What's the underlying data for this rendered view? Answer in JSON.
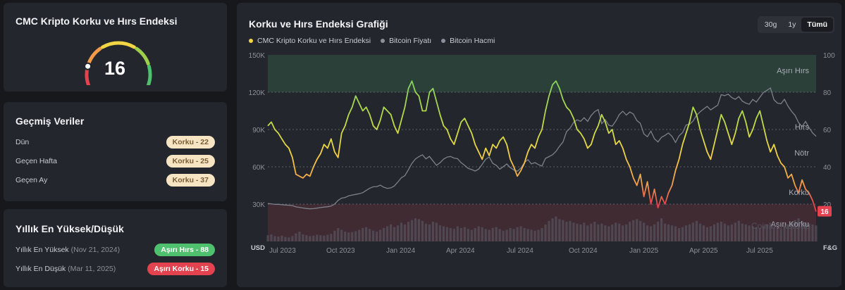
{
  "gauge": {
    "title": "CMC Kripto Korku ve Hırs Endeksi",
    "value": "16",
    "level": 16,
    "colors": [
      "#e2434e",
      "#f2994a",
      "#f2d544",
      "#9ccf4b",
      "#4fc16e"
    ]
  },
  "history": {
    "title": "Geçmiş Veriler",
    "rows": [
      {
        "label": "Dün",
        "badge": "Korku - 22"
      },
      {
        "label": "Geçen Hafta",
        "badge": "Korku - 25"
      },
      {
        "label": "Geçen Ay",
        "badge": "Korku - 37"
      }
    ]
  },
  "yearly": {
    "title": "Yıllık En Yüksek/Düşük",
    "high": {
      "label": "Yıllık En Yüksek",
      "date": "(Nov 21, 2024)",
      "badge": "Aşırı Hırs - 88"
    },
    "low": {
      "label": "Yıllık En Düşük",
      "date": "(Mar 11, 2025)",
      "badge": "Aşırı Korku - 15"
    }
  },
  "chart_card": {
    "title": "Korku ve Hırs Endeksi Grafiği",
    "ranges": [
      "30g",
      "1y",
      "Tümü"
    ],
    "active_range": "Tümü",
    "legend": [
      {
        "name": "CMC Kripto Korku ve Hırs Endeksi",
        "color": "#f2d544"
      },
      {
        "name": "Bitcoin Fiyatı",
        "color": "#8c909a"
      },
      {
        "name": "Bitcoin Hacmi",
        "color": "#8c909a"
      }
    ],
    "watermark": "CoinMarketCap"
  },
  "chart_data": {
    "type": "line",
    "x_ticks": [
      "Jul 2023",
      "Oct 2023",
      "Jan 2024",
      "Apr 2024",
      "Jul 2024",
      "Oct 2024",
      "Jan 2025",
      "Apr 2025",
      "Jul 2025"
    ],
    "left_axis": {
      "unit": "USD",
      "ticks": [
        "150K",
        "120K",
        "90K",
        "60K",
        "30K"
      ],
      "range": [
        0,
        150000
      ]
    },
    "right_axis": {
      "unit": "F&G",
      "ticks": [
        "100",
        "80",
        "60",
        "40",
        "20"
      ],
      "range": [
        0,
        100
      ]
    },
    "zones": [
      {
        "label": "Aşırı Hırs",
        "from": 80,
        "to": 100
      },
      {
        "label": "Hırs",
        "value": 60
      },
      {
        "label": "Nötr",
        "value": 46
      },
      {
        "label": "Korku",
        "value": 25
      },
      {
        "label": "Aşırı Korku",
        "from": 0,
        "to": 20
      }
    ],
    "current_label": "16",
    "current_value": 16,
    "series": [
      {
        "name": "CMC Kripto Korku ve Hırs Endeksi",
        "axis": "right",
        "values": [
          62,
          64,
          60,
          58,
          55,
          52,
          50,
          45,
          36,
          35,
          34,
          36,
          35,
          40,
          44,
          47,
          52,
          50,
          55,
          48,
          45,
          58,
          62,
          68,
          72,
          78,
          74,
          70,
          72,
          68,
          62,
          60,
          65,
          72,
          70,
          68,
          62,
          58,
          65,
          72,
          82,
          86,
          80,
          78,
          70,
          70,
          80,
          82,
          75,
          68,
          62,
          60,
          55,
          52,
          58,
          64,
          66,
          62,
          58,
          52,
          48,
          44,
          50,
          46,
          52,
          50,
          54,
          56,
          52,
          44,
          40,
          35,
          38,
          42,
          48,
          52,
          50,
          56,
          60,
          70,
          78,
          84,
          86,
          82,
          76,
          72,
          70,
          66,
          60,
          58,
          55,
          50,
          52,
          58,
          62,
          68,
          64,
          58,
          60,
          52,
          54,
          50,
          44,
          40,
          34,
          30,
          36,
          24,
          32,
          20,
          28,
          18,
          24,
          20,
          26,
          30,
          38,
          44,
          52,
          58,
          64,
          72,
          68,
          60,
          54,
          48,
          44,
          52,
          60,
          68,
          64,
          58,
          52,
          58,
          66,
          70,
          64,
          56,
          60,
          66,
          70,
          62,
          54,
          48,
          52,
          46,
          42,
          40,
          34,
          36,
          30,
          26,
          33,
          28,
          26,
          22,
          16
        ]
      },
      {
        "name": "Bitcoin Fiyatı",
        "axis": "left",
        "values": [
          30500,
          30200,
          29800,
          29900,
          29500,
          29300,
          29100,
          28800,
          27800,
          27400,
          26900,
          26500,
          26200,
          26400,
          26800,
          27200,
          27600,
          27900,
          28400,
          30000,
          33000,
          34800,
          35300,
          36600,
          37300,
          37800,
          38400,
          39200,
          41000,
          42800,
          43900,
          44100,
          45200,
          43600,
          42700,
          43100,
          44600,
          47800,
          51200,
          52900,
          57700,
          62800,
          66300,
          68200,
          69700,
          66400,
          68400,
          64700,
          61200,
          63300,
          66200,
          67800,
          68300,
          67000,
          66500,
          63300,
          61200,
          58700,
          57800,
          56600,
          58200,
          62000,
          66100,
          67900,
          62800,
          61200,
          58100,
          60100,
          62300,
          59300,
          57500,
          56500,
          59100,
          63400,
          65800,
          62300,
          63400,
          61800,
          60600,
          66800,
          68200,
          69700,
          72400,
          76500,
          80000,
          88300,
          91000,
          95700,
          97800,
          96600,
          99500,
          96500,
          101200,
          104400,
          106000,
          94700,
          97900,
          93500,
          92700,
          96800,
          102000,
          104700,
          101600,
          104100,
          102400,
          97200,
          94900,
          86500,
          84200,
          88700,
          82600,
          80000,
          83700,
          85300,
          87200,
          84500,
          79600,
          84900,
          87500,
          93600,
          94200,
          96800,
          101500,
          104200,
          106500,
          108600,
          105800,
          107700,
          109600,
          118000,
          117300,
          118400,
          115700,
          114300,
          116500,
          112800,
          111200,
          110300,
          114200,
          112000,
          116000,
          119700,
          121500,
          123400,
          114000,
          111200,
          110700,
          114300,
          108800,
          104700,
          101400,
          95600,
          92300,
          96500,
          91500,
          87300,
          84500
        ]
      },
      {
        "name": "Bitcoin Hacmi",
        "axis": "volume",
        "values": [
          14,
          16,
          12,
          11,
          13,
          10,
          9,
          12,
          18,
          22,
          16,
          14,
          12,
          13,
          15,
          14,
          13,
          15,
          17,
          24,
          30,
          26,
          22,
          20,
          21,
          23,
          26,
          30,
          32,
          28,
          24,
          22,
          26,
          30,
          34,
          38,
          32,
          36,
          42,
          38,
          44,
          48,
          52,
          50,
          46,
          40,
          38,
          44,
          42,
          36,
          34,
          32,
          30,
          28,
          34,
          30,
          32,
          28,
          26,
          30,
          34,
          32,
          28,
          26,
          30,
          32,
          28,
          24,
          26,
          30,
          28,
          32,
          34,
          30,
          28,
          26,
          24,
          26,
          30,
          38,
          46,
          52,
          56,
          50,
          48,
          44,
          46,
          42,
          40,
          38,
          42,
          36,
          40,
          44,
          38,
          40,
          36,
          34,
          38,
          42,
          40,
          36,
          38,
          44,
          48,
          50,
          46,
          42,
          36,
          34,
          38,
          44,
          52,
          40,
          38,
          36,
          34,
          30,
          32,
          36,
          38,
          42,
          46,
          40,
          36,
          32,
          34,
          38,
          42,
          44,
          40,
          36,
          38,
          42,
          46,
          40,
          38,
          36,
          34,
          32,
          30,
          34,
          38,
          36,
          32,
          30,
          28,
          34,
          38,
          44,
          48,
          52,
          46,
          42,
          40,
          38,
          36
        ]
      }
    ]
  }
}
